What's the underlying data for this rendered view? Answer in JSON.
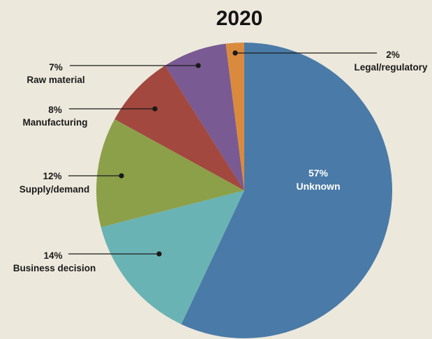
{
  "chart_data": {
    "type": "pie",
    "title": "2020",
    "slices": [
      {
        "label": "Unknown",
        "value": 57,
        "percent_label": "57%",
        "color": "#4a7aa7"
      },
      {
        "label": "Business decision",
        "value": 14,
        "percent_label": "14%",
        "color": "#6ab3b4"
      },
      {
        "label": "Supply/demand",
        "value": 12,
        "percent_label": "12%",
        "color": "#8ca04a"
      },
      {
        "label": "Manufacturing",
        "value": 8,
        "percent_label": "8%",
        "color": "#a2483f"
      },
      {
        "label": "Raw material",
        "value": 7,
        "percent_label": "7%",
        "color": "#7a5a92"
      },
      {
        "label": "Legal/regulatory",
        "value": 2,
        "percent_label": "2%",
        "color": "#d98a3d"
      }
    ]
  },
  "colors": {
    "background": "#ece8dc",
    "text": "#1a1a1a",
    "leader_line": "#1a1a1a"
  }
}
